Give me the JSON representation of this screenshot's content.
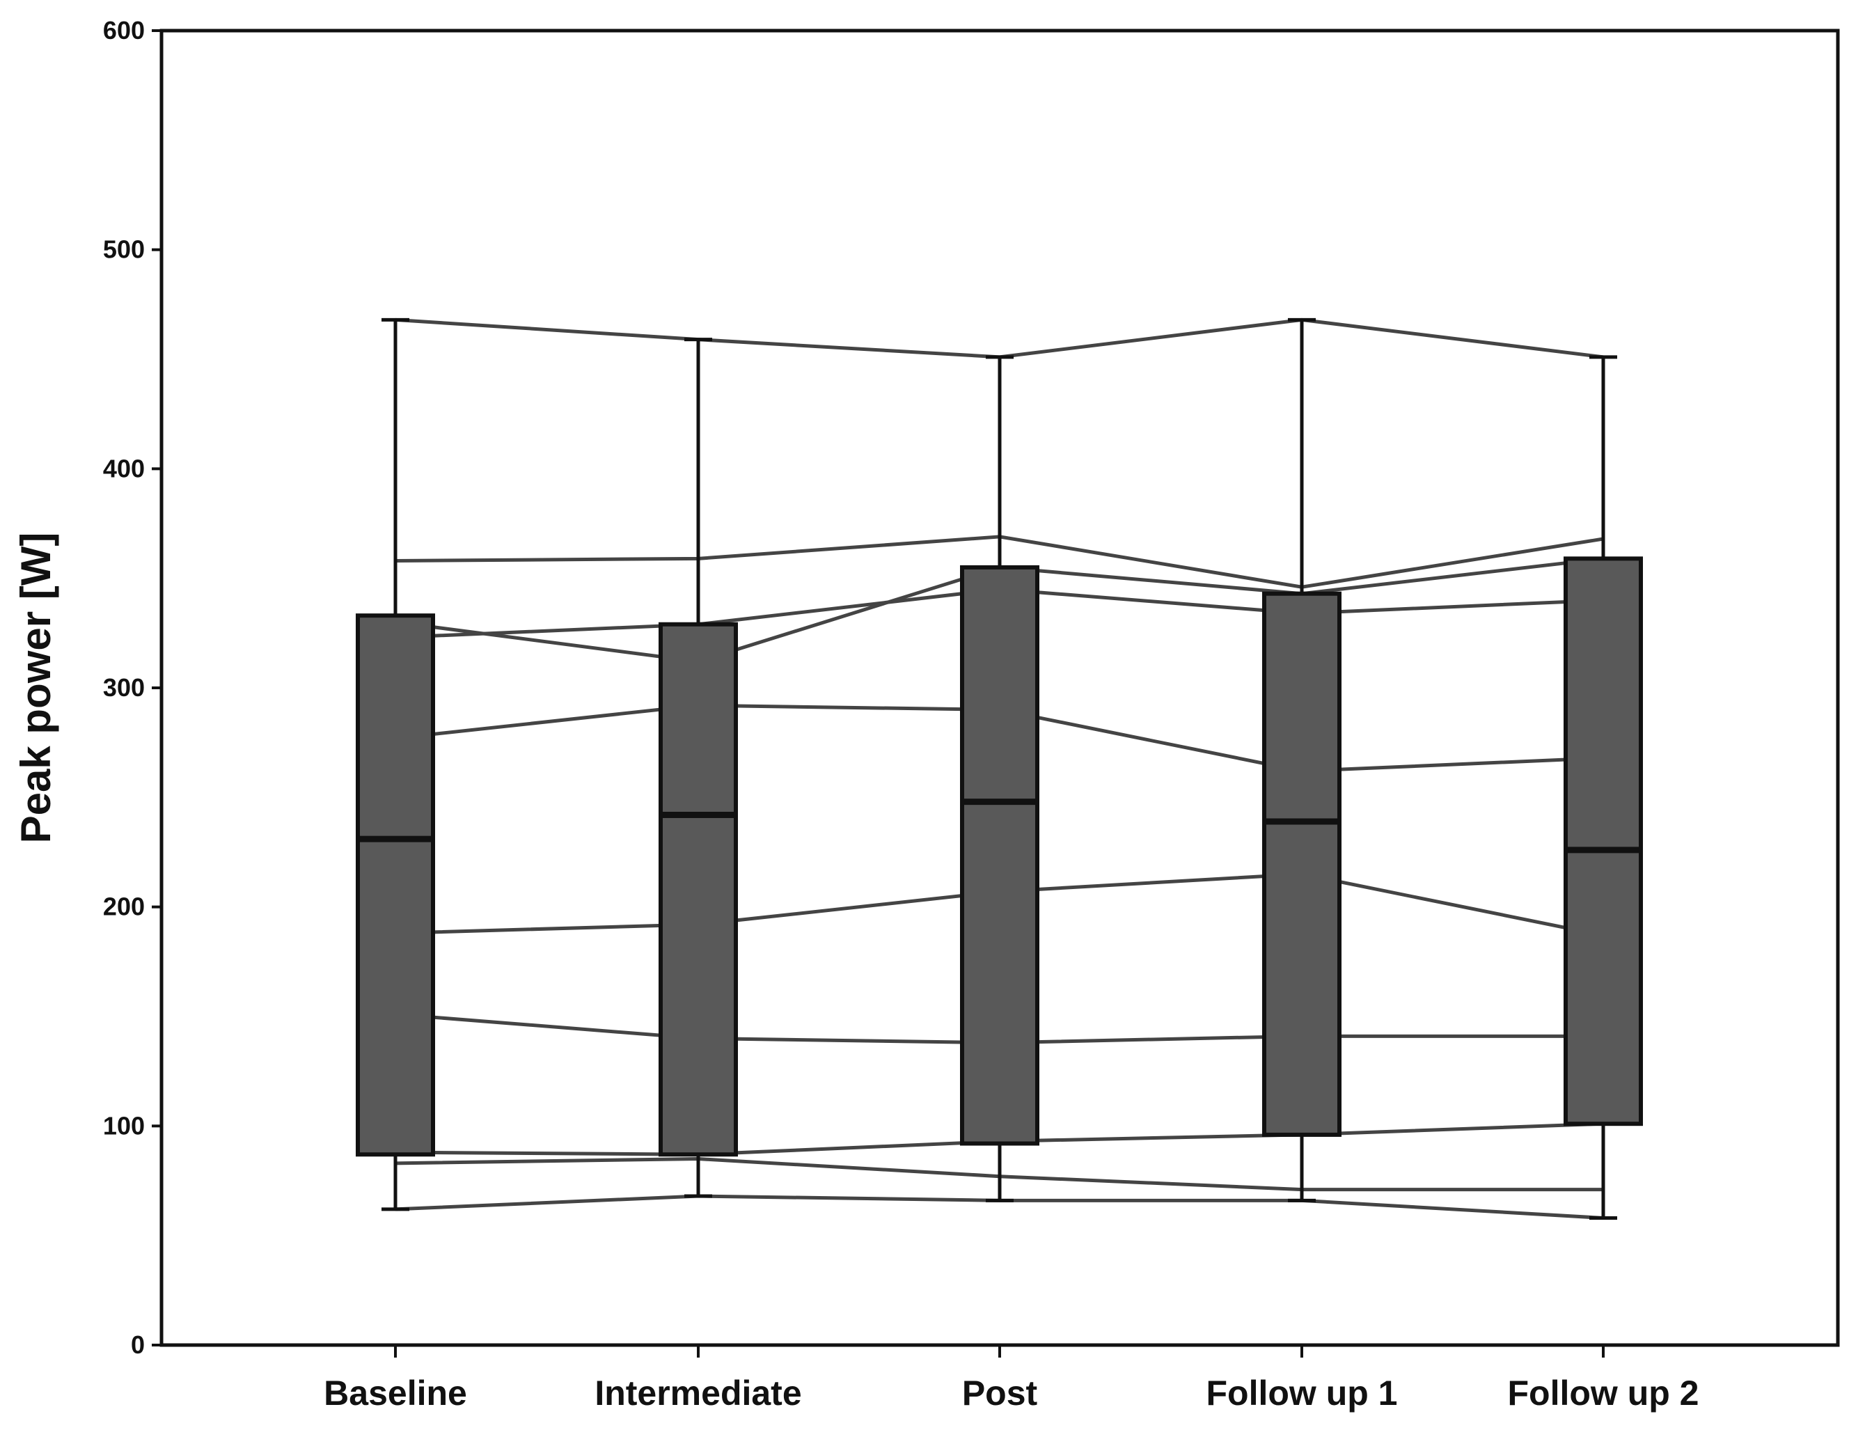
{
  "chart_data": {
    "type": "box",
    "ylabel": "Peak power [W]",
    "xlabel": "",
    "ylim": [
      0,
      600
    ],
    "yticks": [
      0,
      100,
      200,
      300,
      400,
      500,
      600
    ],
    "categories": [
      "Baseline",
      "Intermediate",
      "Post",
      "Follow up 1",
      "Follow up 2"
    ],
    "boxes": [
      {
        "category": "Baseline",
        "min": 62,
        "q1": 87,
        "median": 231,
        "q3": 333,
        "max": 468
      },
      {
        "category": "Intermediate",
        "min": 68,
        "q1": 87,
        "median": 242,
        "q3": 329,
        "max": 459
      },
      {
        "category": "Post",
        "min": 66,
        "q1": 92,
        "median": 248,
        "q3": 355,
        "max": 451
      },
      {
        "category": "Follow up 1",
        "min": 66,
        "q1": 96,
        "median": 239,
        "q3": 343,
        "max": 468
      },
      {
        "category": "Follow up 2",
        "min": 58,
        "q1": 101,
        "median": 226,
        "q3": 359,
        "max": 451
      }
    ],
    "subjects": [
      {
        "values": [
          468,
          459,
          451,
          468,
          451
        ]
      },
      {
        "values": [
          358,
          359,
          369,
          346,
          368
        ]
      },
      {
        "values": [
          323,
          329,
          345,
          334,
          340
        ]
      },
      {
        "values": [
          330,
          312,
          355,
          343,
          359
        ]
      },
      {
        "values": [
          277,
          292,
          290,
          262,
          268
        ]
      },
      {
        "values": [
          188,
          192,
          207,
          215,
          187
        ]
      },
      {
        "values": [
          151,
          140,
          138,
          141,
          141
        ]
      },
      {
        "values": [
          88,
          87,
          93,
          96,
          101
        ]
      },
      {
        "values": [
          83,
          85,
          77,
          71,
          71
        ]
      },
      {
        "values": [
          62,
          68,
          66,
          66,
          58
        ]
      }
    ],
    "colors": {
      "box_fill": "#595959",
      "box_stroke": "#111111",
      "line": "#444444",
      "axis": "#111111"
    },
    "grid": false,
    "legend": "none"
  }
}
